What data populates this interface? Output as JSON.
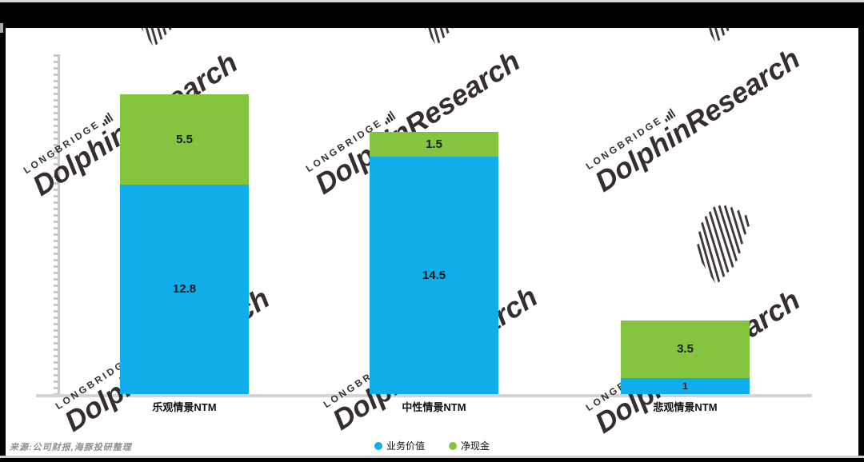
{
  "watermark": {
    "brand": "LONGBRIDGE",
    "name": "DolphinResearch"
  },
  "source_note": "来源:公司财报,海豚投研整理",
  "chart_data": {
    "type": "bar",
    "stacked": true,
    "categories": [
      "乐观情景NTM",
      "中性情景NTM",
      "悲观情景NTM"
    ],
    "series": [
      {
        "name": "业务价值",
        "color": "#0FAEEA",
        "values": [
          12.8,
          14.5,
          1
        ]
      },
      {
        "name": "净现金",
        "color": "#85C43F",
        "values": [
          5.5,
          1.5,
          3.5
        ]
      }
    ],
    "value_labels": [
      "12.8",
      "5.5",
      "14.5",
      "1.5",
      "1",
      "3.5"
    ],
    "ylim": [
      0,
      20.5
    ],
    "grid": false,
    "y_tick_labels_visible": false,
    "legend_position": "bottom"
  }
}
